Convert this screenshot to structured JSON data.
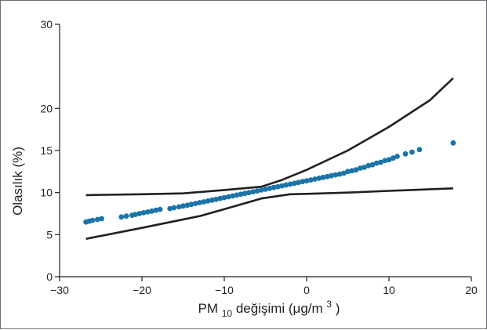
{
  "chart_data": {
    "type": "scatter",
    "title": "",
    "xlabel": {
      "prefix": "PM",
      "sub": "10",
      "middle": " değişimi (μg/m",
      "sup": "3",
      "suffix": ")"
    },
    "ylabel": "Olasılık (%)",
    "xlim": [
      -30,
      20
    ],
    "ylim": [
      0,
      30
    ],
    "xticks": [
      -30,
      -20,
      -10,
      0,
      10,
      20
    ],
    "yticks": [
      0,
      5,
      10,
      15,
      20,
      30
    ],
    "xtick_labels": [
      "−30",
      "−20",
      "−10",
      "0",
      "10",
      "20"
    ],
    "ytick_labels": [
      "0",
      "5",
      "10",
      "15",
      "20",
      "30"
    ],
    "grid": false,
    "colors": {
      "points": "#1a74a8",
      "lines": "#231f20"
    },
    "series": [
      {
        "kind": "points",
        "x": [
          -26.8,
          -26.4,
          -26.0,
          -25.4,
          -24.9,
          -22.5,
          -21.9,
          -21.2,
          -20.8,
          -20.3,
          -19.8,
          -19.3,
          -18.8,
          -18.3,
          -17.8,
          -16.6,
          -16.1,
          -15.5,
          -15.0,
          -14.5,
          -14.0,
          -13.5,
          -13.0,
          -12.5,
          -12.0,
          -11.5,
          -11.0,
          -10.5,
          -10.0,
          -9.5,
          -9.0,
          -8.5,
          -8.0,
          -7.5,
          -7.0,
          -6.5,
          -6.0,
          -5.5,
          -5.0,
          -4.5,
          -4.0,
          -3.5,
          -3.0,
          -2.5,
          -2.0,
          -1.5,
          -1.0,
          -0.5,
          0.0,
          0.5,
          1.0,
          1.5,
          2.0,
          2.5,
          3.0,
          3.5,
          4.0,
          4.5,
          5.0,
          5.5,
          6.0,
          6.5,
          7.0,
          7.5,
          8.0,
          8.5,
          9.0,
          9.5,
          10.0,
          10.5,
          11.0,
          12.0,
          12.8,
          13.7,
          17.8
        ],
        "y": [
          6.5,
          6.6,
          6.7,
          6.8,
          6.9,
          7.1,
          7.2,
          7.3,
          7.4,
          7.5,
          7.6,
          7.7,
          7.8,
          7.9,
          8.0,
          8.1,
          8.2,
          8.3,
          8.4,
          8.5,
          8.6,
          8.7,
          8.8,
          8.9,
          9.0,
          9.1,
          9.2,
          9.3,
          9.4,
          9.5,
          9.6,
          9.7,
          9.8,
          9.9,
          10.0,
          10.1,
          10.2,
          10.3,
          10.4,
          10.5,
          10.6,
          10.7,
          10.8,
          10.9,
          11.0,
          11.1,
          11.2,
          11.3,
          11.4,
          11.5,
          11.6,
          11.7,
          11.8,
          11.9,
          12.0,
          12.1,
          12.2,
          12.3,
          12.5,
          12.6,
          12.7,
          12.9,
          13.0,
          13.2,
          13.3,
          13.5,
          13.6,
          13.8,
          13.9,
          14.1,
          14.3,
          14.6,
          14.8,
          15.1,
          15.9
        ]
      },
      {
        "kind": "line",
        "x": [
          -26.8,
          -20.0,
          -15.0,
          -10.0,
          -5.5,
          -3.0,
          0.0,
          5.0,
          10.0,
          15.0,
          17.8
        ],
        "y": [
          9.7,
          9.8,
          9.9,
          10.3,
          10.7,
          11.5,
          12.7,
          15.0,
          17.8,
          21.0,
          23.6
        ]
      },
      {
        "kind": "line",
        "x": [
          -26.8,
          -20.0,
          -13.0,
          -9.0,
          -5.5,
          -2.0,
          0.0,
          5.0,
          10.0,
          15.0,
          17.8
        ],
        "y": [
          4.5,
          5.8,
          7.2,
          8.3,
          9.3,
          9.8,
          9.85,
          10.0,
          10.2,
          10.4,
          10.5
        ]
      }
    ]
  }
}
